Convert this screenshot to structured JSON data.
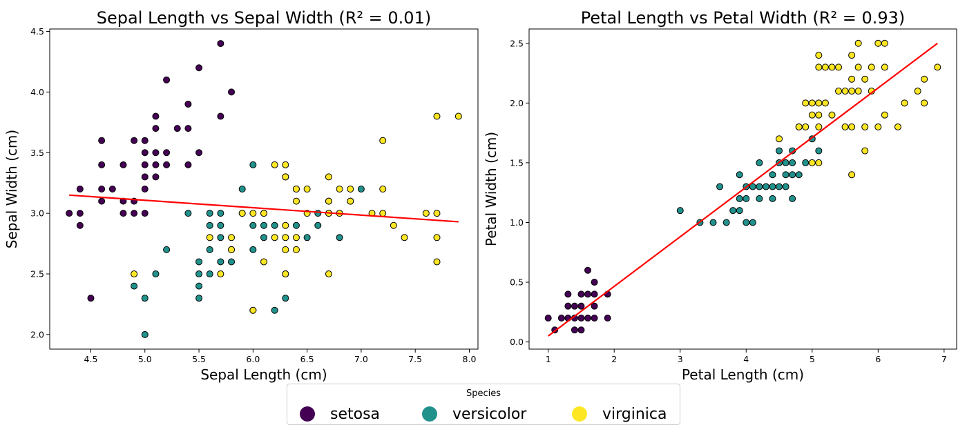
{
  "chart_data": [
    {
      "type": "scatter",
      "title": "Sepal Length vs Sepal Width (R² = 0.01)",
      "xlabel": "Sepal Length (cm)",
      "ylabel": "Sepal Width (cm)",
      "xlim": [
        4.12,
        8.08
      ],
      "ylim": [
        1.88,
        4.52
      ],
      "xticks": [
        "4.5",
        "5.0",
        "5.5",
        "6.0",
        "6.5",
        "7.0",
        "7.5",
        "8.0"
      ],
      "yticks": [
        "2.0",
        "2.5",
        "3.0",
        "3.5",
        "4.0",
        "4.5"
      ],
      "trendline": {
        "x": [
          4.3,
          7.9
        ],
        "y": [
          3.15,
          2.93
        ],
        "color": "#ff0000"
      },
      "series": [
        {
          "name": "setosa",
          "color": "#440154",
          "points": [
            [
              4.3,
              3.0
            ],
            [
              4.4,
              3.2
            ],
            [
              4.4,
              3.0
            ],
            [
              4.4,
              2.9
            ],
            [
              4.5,
              2.3
            ],
            [
              4.6,
              3.6
            ],
            [
              4.6,
              3.4
            ],
            [
              4.6,
              3.2
            ],
            [
              4.6,
              3.1
            ],
            [
              4.7,
              3.2
            ],
            [
              4.8,
              3.4
            ],
            [
              4.8,
              3.1
            ],
            [
              4.8,
              3.0
            ],
            [
              4.9,
              3.6
            ],
            [
              4.9,
              3.1
            ],
            [
              4.9,
              3.0
            ],
            [
              5.0,
              3.6
            ],
            [
              5.0,
              3.5
            ],
            [
              5.0,
              3.4
            ],
            [
              5.0,
              3.3
            ],
            [
              5.0,
              3.2
            ],
            [
              5.0,
              3.0
            ],
            [
              5.1,
              3.8
            ],
            [
              5.1,
              3.7
            ],
            [
              5.1,
              3.5
            ],
            [
              5.1,
              3.4
            ],
            [
              5.1,
              3.3
            ],
            [
              5.2,
              4.1
            ],
            [
              5.2,
              3.5
            ],
            [
              5.2,
              3.4
            ],
            [
              5.3,
              3.7
            ],
            [
              5.4,
              3.9
            ],
            [
              5.4,
              3.7
            ],
            [
              5.4,
              3.4
            ],
            [
              5.5,
              4.2
            ],
            [
              5.5,
              3.5
            ],
            [
              5.7,
              4.4
            ],
            [
              5.7,
              3.8
            ],
            [
              5.8,
              4.0
            ]
          ]
        },
        {
          "name": "versicolor",
          "color": "#21918c",
          "points": [
            [
              4.9,
              2.4
            ],
            [
              5.0,
              2.0
            ],
            [
              5.0,
              2.3
            ],
            [
              5.1,
              2.5
            ],
            [
              5.2,
              2.7
            ],
            [
              5.4,
              3.0
            ],
            [
              5.5,
              2.6
            ],
            [
              5.5,
              2.5
            ],
            [
              5.5,
              2.4
            ],
            [
              5.5,
              2.3
            ],
            [
              5.6,
              3.0
            ],
            [
              5.6,
              2.9
            ],
            [
              5.6,
              2.7
            ],
            [
              5.6,
              2.5
            ],
            [
              5.7,
              3.0
            ],
            [
              5.7,
              2.9
            ],
            [
              5.7,
              2.8
            ],
            [
              5.7,
              2.6
            ],
            [
              5.8,
              2.7
            ],
            [
              5.8,
              2.6
            ],
            [
              5.9,
              3.2
            ],
            [
              5.9,
              3.0
            ],
            [
              6.0,
              3.4
            ],
            [
              6.0,
              2.9
            ],
            [
              6.0,
              2.7
            ],
            [
              6.0,
              2.2
            ],
            [
              6.1,
              3.0
            ],
            [
              6.1,
              2.9
            ],
            [
              6.1,
              2.8
            ],
            [
              6.2,
              2.9
            ],
            [
              6.2,
              2.2
            ],
            [
              6.3,
              3.3
            ],
            [
              6.3,
              2.5
            ],
            [
              6.3,
              2.3
            ],
            [
              6.4,
              3.2
            ],
            [
              6.4,
              2.9
            ],
            [
              6.5,
              2.8
            ],
            [
              6.6,
              3.0
            ],
            [
              6.6,
              2.9
            ],
            [
              6.7,
              3.1
            ],
            [
              6.7,
              3.0
            ],
            [
              6.8,
              2.8
            ],
            [
              6.9,
              3.1
            ],
            [
              7.0,
              3.2
            ]
          ]
        },
        {
          "name": "virginica",
          "color": "#fde725",
          "points": [
            [
              4.9,
              2.5
            ],
            [
              5.6,
              2.8
            ],
            [
              5.7,
              2.5
            ],
            [
              5.8,
              2.8
            ],
            [
              5.8,
              2.7
            ],
            [
              5.9,
              3.0
            ],
            [
              6.0,
              3.0
            ],
            [
              6.0,
              2.2
            ],
            [
              6.1,
              3.0
            ],
            [
              6.1,
              2.6
            ],
            [
              6.2,
              3.4
            ],
            [
              6.2,
              2.8
            ],
            [
              6.3,
              3.4
            ],
            [
              6.3,
              3.3
            ],
            [
              6.3,
              2.9
            ],
            [
              6.3,
              2.8
            ],
            [
              6.3,
              2.7
            ],
            [
              6.3,
              2.5
            ],
            [
              6.4,
              3.2
            ],
            [
              6.4,
              3.1
            ],
            [
              6.4,
              2.8
            ],
            [
              6.4,
              2.7
            ],
            [
              6.5,
              3.2
            ],
            [
              6.5,
              3.0
            ],
            [
              6.7,
              3.3
            ],
            [
              6.7,
              3.1
            ],
            [
              6.7,
              3.0
            ],
            [
              6.7,
              2.5
            ],
            [
              6.8,
              3.2
            ],
            [
              6.8,
              3.0
            ],
            [
              6.9,
              3.2
            ],
            [
              6.9,
              3.1
            ],
            [
              7.1,
              3.0
            ],
            [
              7.2,
              3.6
            ],
            [
              7.2,
              3.2
            ],
            [
              7.2,
              3.0
            ],
            [
              7.3,
              2.9
            ],
            [
              7.4,
              2.8
            ],
            [
              7.6,
              3.0
            ],
            [
              7.7,
              3.8
            ],
            [
              7.7,
              3.0
            ],
            [
              7.7,
              2.8
            ],
            [
              7.7,
              2.6
            ],
            [
              7.9,
              3.8
            ]
          ]
        }
      ]
    },
    {
      "type": "scatter",
      "title": "Petal Length vs Petal Width (R² = 0.93)",
      "xlabel": "Petal Length (cm)",
      "ylabel": "Petal Width (cm)",
      "xlim": [
        0.71,
        7.19
      ],
      "ylim": [
        -0.06,
        2.62
      ],
      "xticks": [
        "1",
        "2",
        "3",
        "4",
        "5",
        "6",
        "7"
      ],
      "yticks": [
        "0.0",
        "0.5",
        "1.0",
        "1.5",
        "2.0",
        "2.5"
      ],
      "trendline": {
        "x": [
          1.0,
          6.9
        ],
        "y": [
          0.05,
          2.5
        ],
        "color": "#ff0000"
      },
      "series": [
        {
          "name": "setosa",
          "color": "#440154",
          "points": [
            [
              1.0,
              0.2
            ],
            [
              1.1,
              0.1
            ],
            [
              1.2,
              0.2
            ],
            [
              1.3,
              0.4
            ],
            [
              1.3,
              0.3
            ],
            [
              1.3,
              0.2
            ],
            [
              1.4,
              0.3
            ],
            [
              1.4,
              0.2
            ],
            [
              1.4,
              0.1
            ],
            [
              1.5,
              0.4
            ],
            [
              1.5,
              0.3
            ],
            [
              1.5,
              0.2
            ],
            [
              1.5,
              0.1
            ],
            [
              1.6,
              0.6
            ],
            [
              1.6,
              0.4
            ],
            [
              1.6,
              0.2
            ],
            [
              1.7,
              0.5
            ],
            [
              1.7,
              0.4
            ],
            [
              1.7,
              0.3
            ],
            [
              1.7,
              0.2
            ],
            [
              1.9,
              0.4
            ],
            [
              1.9,
              0.2
            ]
          ]
        },
        {
          "name": "versicolor",
          "color": "#21918c",
          "points": [
            [
              3.0,
              1.1
            ],
            [
              3.3,
              1.0
            ],
            [
              3.5,
              1.0
            ],
            [
              3.6,
              1.3
            ],
            [
              3.7,
              1.0
            ],
            [
              3.8,
              1.1
            ],
            [
              3.9,
              1.4
            ],
            [
              3.9,
              1.2
            ],
            [
              3.9,
              1.1
            ],
            [
              4.0,
              1.3
            ],
            [
              4.0,
              1.2
            ],
            [
              4.0,
              1.0
            ],
            [
              4.1,
              1.3
            ],
            [
              4.1,
              1.0
            ],
            [
              4.2,
              1.5
            ],
            [
              4.2,
              1.3
            ],
            [
              4.2,
              1.2
            ],
            [
              4.3,
              1.3
            ],
            [
              4.4,
              1.4
            ],
            [
              4.4,
              1.3
            ],
            [
              4.4,
              1.2
            ],
            [
              4.5,
              1.6
            ],
            [
              4.5,
              1.5
            ],
            [
              4.5,
              1.3
            ],
            [
              4.6,
              1.5
            ],
            [
              4.6,
              1.4
            ],
            [
              4.6,
              1.3
            ],
            [
              4.7,
              1.6
            ],
            [
              4.7,
              1.5
            ],
            [
              4.7,
              1.4
            ],
            [
              4.7,
              1.2
            ],
            [
              4.8,
              1.8
            ],
            [
              4.8,
              1.4
            ],
            [
              4.9,
              1.5
            ],
            [
              5.0,
              1.7
            ],
            [
              5.1,
              1.6
            ]
          ]
        },
        {
          "name": "virginica",
          "color": "#fde725",
          "points": [
            [
              4.5,
              1.7
            ],
            [
              4.8,
              1.8
            ],
            [
              4.9,
              2.0
            ],
            [
              4.9,
              1.8
            ],
            [
              5.0,
              2.0
            ],
            [
              5.0,
              1.9
            ],
            [
              5.0,
              1.5
            ],
            [
              5.1,
              2.4
            ],
            [
              5.1,
              2.3
            ],
            [
              5.1,
              2.0
            ],
            [
              5.1,
              1.9
            ],
            [
              5.1,
              1.8
            ],
            [
              5.1,
              1.5
            ],
            [
              5.2,
              2.3
            ],
            [
              5.2,
              2.0
            ],
            [
              5.3,
              2.3
            ],
            [
              5.3,
              1.9
            ],
            [
              5.4,
              2.3
            ],
            [
              5.4,
              2.1
            ],
            [
              5.5,
              2.1
            ],
            [
              5.5,
              1.8
            ],
            [
              5.6,
              2.4
            ],
            [
              5.6,
              2.2
            ],
            [
              5.6,
              2.1
            ],
            [
              5.6,
              1.8
            ],
            [
              5.6,
              1.4
            ],
            [
              5.7,
              2.5
            ],
            [
              5.7,
              2.3
            ],
            [
              5.7,
              2.1
            ],
            [
              5.8,
              2.2
            ],
            [
              5.8,
              1.8
            ],
            [
              5.8,
              1.6
            ],
            [
              5.9,
              2.3
            ],
            [
              5.9,
              2.1
            ],
            [
              6.0,
              2.5
            ],
            [
              6.0,
              1.8
            ],
            [
              6.1,
              2.5
            ],
            [
              6.1,
              2.3
            ],
            [
              6.1,
              1.9
            ],
            [
              6.3,
              1.8
            ],
            [
              6.4,
              2.0
            ],
            [
              6.6,
              2.1
            ],
            [
              6.7,
              2.2
            ],
            [
              6.7,
              2.0
            ],
            [
              6.9,
              2.3
            ]
          ]
        }
      ]
    }
  ],
  "legend": {
    "title": "Species",
    "items": [
      {
        "label": "setosa",
        "color": "#440154"
      },
      {
        "label": "versicolor",
        "color": "#21918c"
      },
      {
        "label": "virginica",
        "color": "#fde725"
      }
    ]
  }
}
